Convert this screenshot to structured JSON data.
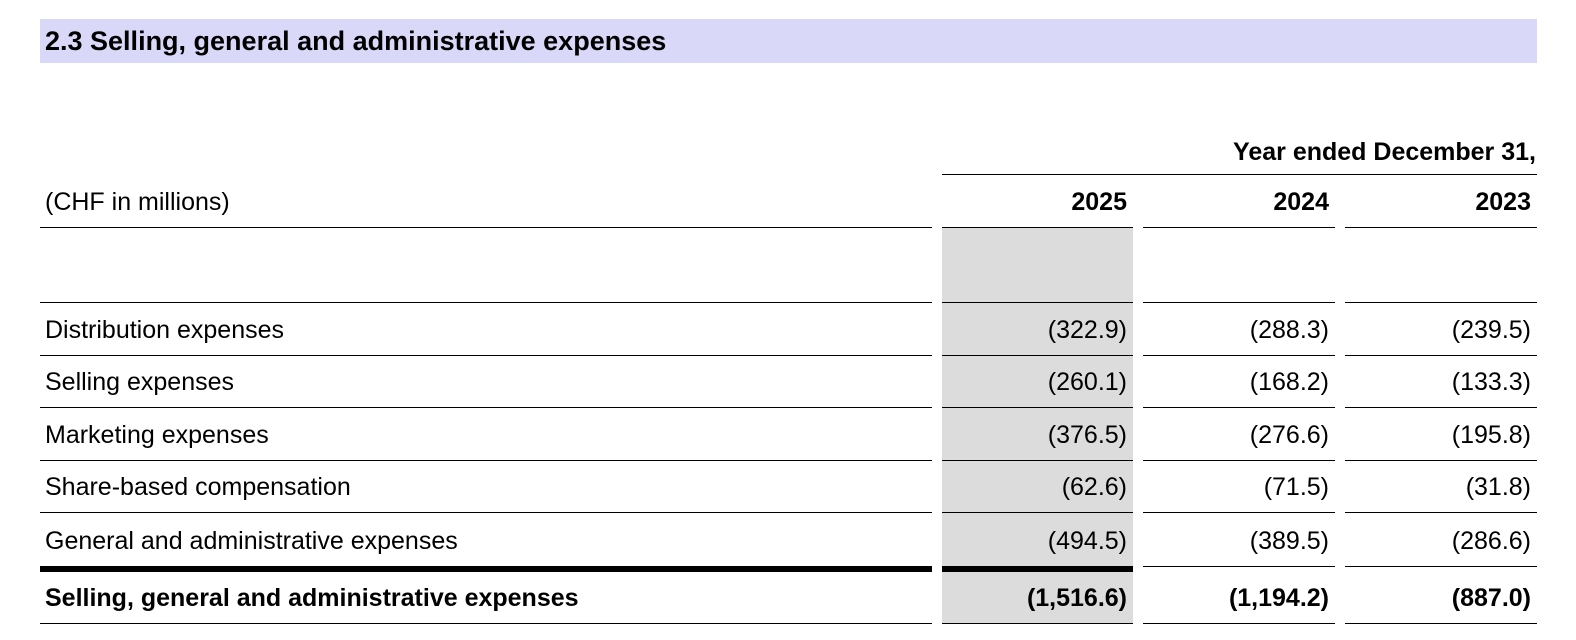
{
  "section": {
    "title": "2.3 Selling, general and administrative expenses"
  },
  "table": {
    "period_header": "Year ended December 31,",
    "unit_label": "(CHF in millions)",
    "years": [
      "2025",
      "2024",
      "2023"
    ],
    "rows": [
      {
        "label": "Distribution expenses",
        "values": [
          "(322.9)",
          "(288.3)",
          "(239.5)"
        ]
      },
      {
        "label": "Selling expenses",
        "values": [
          "(260.1)",
          "(168.2)",
          "(133.3)"
        ]
      },
      {
        "label": "Marketing expenses",
        "values": [
          "(376.5)",
          "(276.6)",
          "(195.8)"
        ]
      },
      {
        "label": "Share-based compensation",
        "values": [
          "(62.6)",
          "(71.5)",
          "(31.8)"
        ]
      },
      {
        "label": "General and administrative expenses",
        "values": [
          "(494.5)",
          "(389.5)",
          "(286.6)"
        ]
      }
    ],
    "total": {
      "label": "Selling, general and administrative expenses",
      "values": [
        "(1,516.6)",
        "(1,194.2)",
        "(887.0)"
      ]
    }
  },
  "colors": {
    "section_band": "#d9d8f8",
    "highlight_column": "#dcdcdc",
    "rule": "#000000"
  }
}
